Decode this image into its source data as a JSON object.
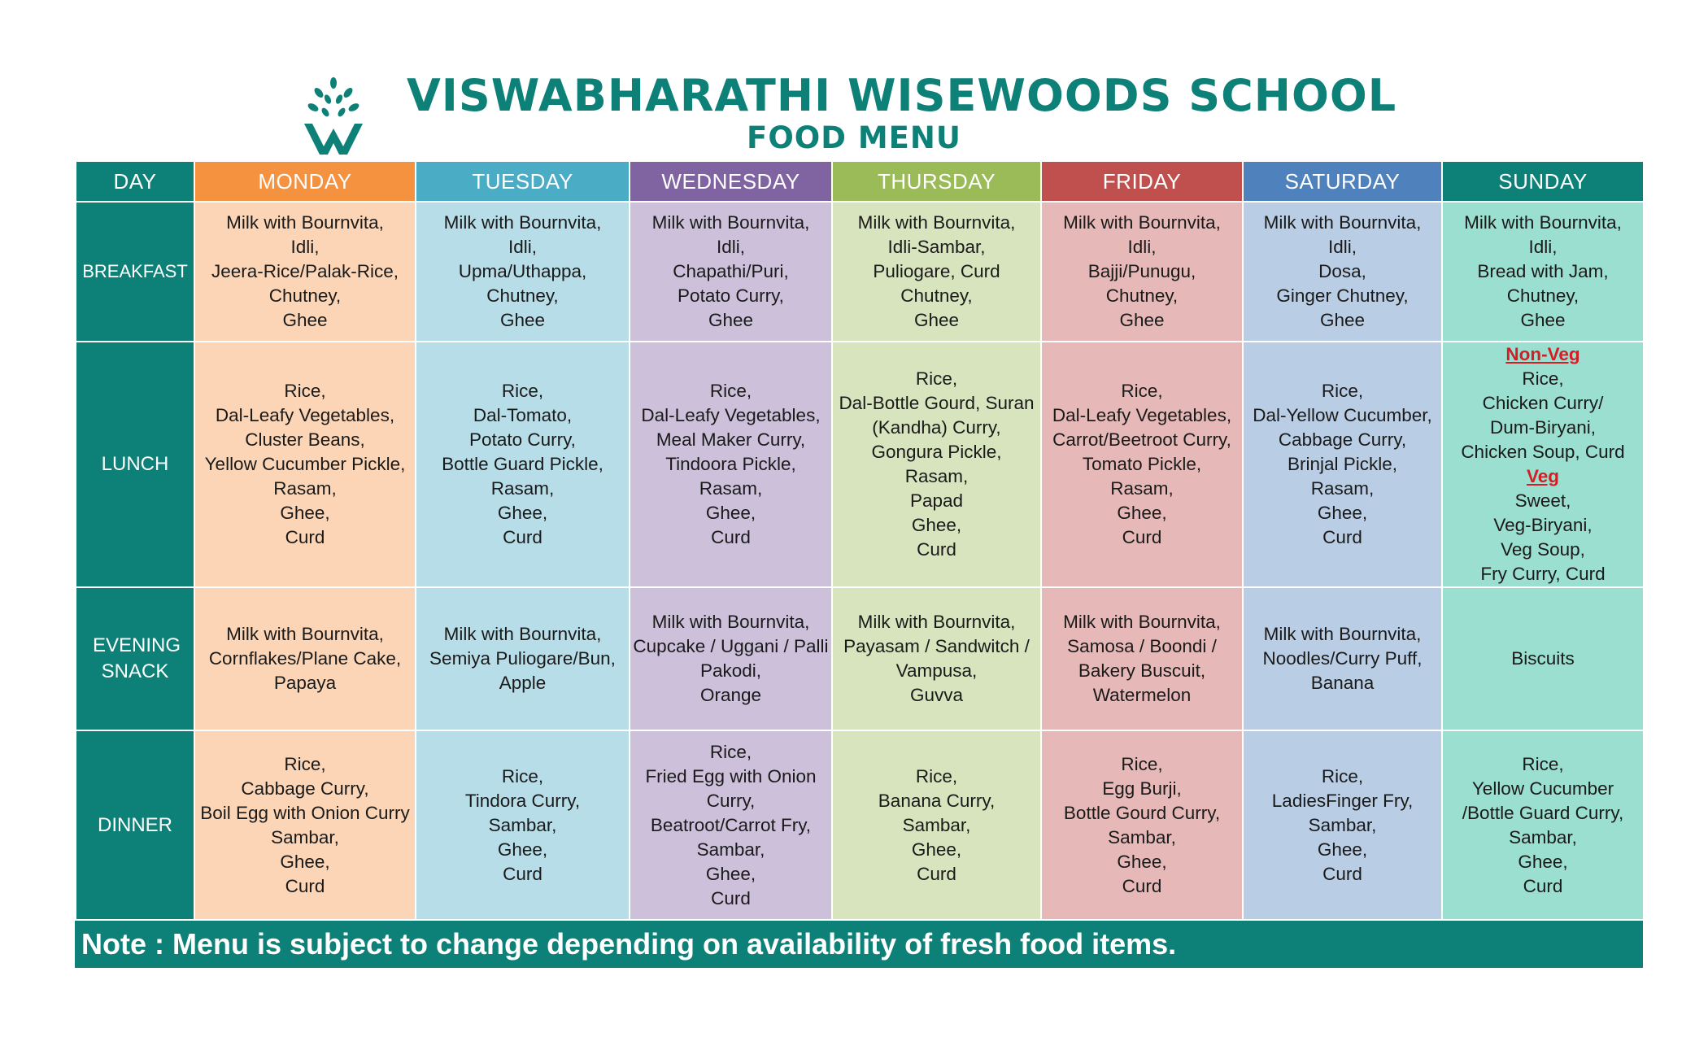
{
  "school": {
    "title": "VISWABHARATHI WISEWOODS SCHOOL",
    "subtitle": "FOOD MENU"
  },
  "header": {
    "day_label": "DAY",
    "days": [
      "MONDAY",
      "TUESDAY",
      "WEDNESDAY",
      "THURSDAY",
      "FRIDAY",
      "SATURDAY",
      "SUNDAY"
    ]
  },
  "colors": {
    "brand": "#0d8077",
    "day_headers": [
      "#f4923f",
      "#4aacc5",
      "#8064a2",
      "#9bbb59",
      "#c0504d",
      "#4f81bd",
      "#0d8077"
    ],
    "day_cells": [
      "#fbd5b5",
      "#b7dde8",
      "#ccc0da",
      "#d7e4bd",
      "#e6b9b8",
      "#b9cde5",
      "#9adfcf"
    ],
    "highlight": "#d21f26"
  },
  "meals": [
    {
      "label": "BREAKFAST",
      "cells": [
        [
          "Milk with Bournvita,",
          "Idli,",
          "Jeera-Rice/Palak-Rice,",
          "Chutney,",
          "Ghee"
        ],
        [
          "Milk with Bournvita,",
          "Idli,",
          "Upma/Uthappa,",
          "Chutney,",
          "Ghee"
        ],
        [
          "Milk with Bournvita,",
          "Idli,",
          "Chapathi/Puri,",
          "Potato Curry,",
          "Ghee"
        ],
        [
          "Milk with Bournvita,",
          "Idli-Sambar,",
          "Puliogare, Curd",
          "Chutney,",
          "Ghee"
        ],
        [
          "Milk with Bournvita,",
          "Idli,",
          "Bajji/Punugu,",
          "Chutney,",
          "Ghee"
        ],
        [
          "Milk with Bournvita,",
          "Idli,",
          "Dosa,",
          "Ginger Chutney,",
          "Ghee"
        ],
        [
          "Milk with Bournvita,",
          "Idli,",
          "Bread with Jam,",
          "Chutney,",
          "Ghee"
        ]
      ]
    },
    {
      "label": "LUNCH",
      "cells": [
        [
          "Rice,",
          "Dal-Leafy Vegetables,",
          "Cluster Beans,",
          "Yellow Cucumber Pickle,",
          "Rasam,",
          "Ghee,",
          "Curd"
        ],
        [
          "Rice,",
          "Dal-Tomato,",
          "Potato Curry,",
          "Bottle Guard Pickle,",
          "Rasam,",
          "Ghee,",
          "Curd"
        ],
        [
          "Rice,",
          "Dal-Leafy Vegetables,",
          "Meal Maker Curry,",
          "Tindoora Pickle,",
          "Rasam,",
          "Ghee,",
          "Curd"
        ],
        [
          "Rice,",
          "Dal-Bottle Gourd, Suran",
          "(Kandha) Curry,",
          "Gongura Pickle,",
          "Rasam,",
          "Papad",
          "Ghee,",
          "Curd"
        ],
        [
          "Rice,",
          "Dal-Leafy Vegetables,",
          "Carrot/Beetroot Curry,",
          "Tomato Pickle,",
          "Rasam,",
          "Ghee,",
          "Curd"
        ],
        [
          "Rice,",
          "Dal-Yellow Cucumber,",
          "Cabbage Curry,",
          "Brinjal Pickle,",
          "Rasam,",
          "Ghee,",
          "Curd"
        ],
        [
          "*Non-Veg",
          "Rice,",
          "Chicken Curry/",
          "Dum-Biryani,",
          "Chicken Soup, Curd",
          "*Veg",
          "Sweet,",
          "Veg-Biryani,",
          "Veg Soup,",
          "Fry Curry, Curd"
        ]
      ]
    },
    {
      "label": "EVENING SNACK",
      "cells": [
        [
          "Milk with Bournvita,",
          "Cornflakes/Plane Cake,",
          "Papaya"
        ],
        [
          "Milk with Bournvita,",
          "Semiya Puliogare/Bun,",
          "Apple"
        ],
        [
          "Milk with Bournvita,",
          "Cupcake / Uggani / Palli",
          "Pakodi,",
          "Orange"
        ],
        [
          "Milk with Bournvita,",
          "Payasam / Sandwitch /",
          "Vampusa,",
          "Guvva"
        ],
        [
          "Milk with Bournvita,",
          "Samosa / Boondi /",
          "Bakery Buscuit,",
          "Watermelon"
        ],
        [
          "Milk with Bournvita,",
          "Noodles/Curry Puff,",
          "Banana"
        ],
        [
          "Biscuits"
        ]
      ]
    },
    {
      "label": "DINNER",
      "cells": [
        [
          "Rice,",
          "Cabbage Curry,",
          "Boil Egg with Onion Curry",
          "Sambar,",
          "Ghee,",
          "Curd"
        ],
        [
          "Rice,",
          "Tindora Curry,",
          "Sambar,",
          "Ghee,",
          "Curd"
        ],
        [
          "Rice,",
          "Fried Egg with Onion",
          "Curry,",
          "Beatroot/Carrot Fry,",
          "Sambar,",
          "Ghee,",
          "Curd"
        ],
        [
          "Rice,",
          "Banana Curry,",
          "Sambar,",
          "Ghee,",
          "Curd"
        ],
        [
          "Rice,",
          "Egg Burji,",
          "Bottle Gourd Curry,",
          "Sambar,",
          "Ghee,",
          "Curd"
        ],
        [
          "Rice,",
          "LadiesFinger Fry,",
          "Sambar,",
          "Ghee,",
          "Curd"
        ],
        [
          "Rice,",
          "Yellow Cucumber",
          "/Bottle Guard Curry,",
          "Sambar,",
          "Ghee,",
          "Curd"
        ]
      ]
    }
  ],
  "note": "Note : Menu is subject to change depending on availability of fresh food items."
}
